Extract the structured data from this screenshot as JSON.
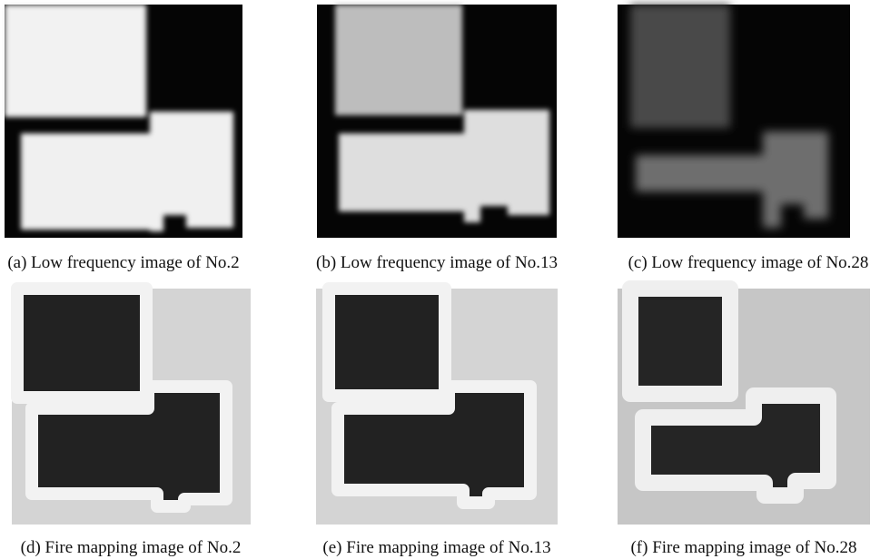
{
  "panels": [
    {
      "caption": "(a) Low frequency image of No.2"
    },
    {
      "caption": "(b) Low frequency image of No.13"
    },
    {
      "caption": "(c) Low frequency image of No.28"
    },
    {
      "caption": "(d) Fire mapping image of No.2"
    },
    {
      "caption": "(e) Fire mapping image of No.13"
    },
    {
      "caption": "(f) Fire mapping image of No.28"
    }
  ]
}
